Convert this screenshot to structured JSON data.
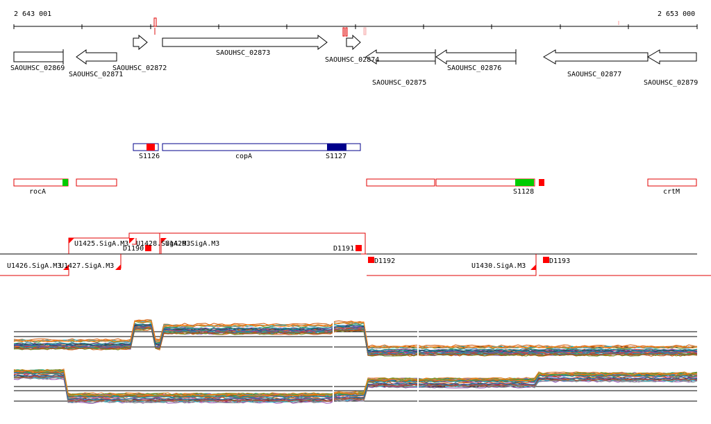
{
  "axis": {
    "start_label": "2 643 001",
    "end_label": "2 653 000"
  },
  "genes": [
    {
      "label": "SAOUHSC_02869",
      "dir": "none"
    },
    {
      "label": "SAOUHSC_02871",
      "dir": "left"
    },
    {
      "label": "SAOUHSC_02872",
      "dir": "right"
    },
    {
      "label": "SAOUHSC_02873",
      "dir": "right"
    },
    {
      "label": "SAOUHSC_02874",
      "dir": "right"
    },
    {
      "label": "SAOUHSC_02875",
      "dir": "left"
    },
    {
      "label": "SAOUHSC_02876",
      "dir": "left"
    },
    {
      "label": "SAOUHSC_02877",
      "dir": "left"
    },
    {
      "label": "SAOUHSC_02879",
      "dir": "left"
    }
  ],
  "features_blue": [
    {
      "label": "S1126"
    },
    {
      "label": "copA"
    },
    {
      "label": "S1127"
    }
  ],
  "features_red": [
    {
      "label": "rocA"
    },
    {
      "label": "S1128"
    },
    {
      "label": "crtM"
    }
  ],
  "transcription": [
    {
      "label": "U1425.SigA.M3"
    },
    {
      "label": "U1426.SigA.M3"
    },
    {
      "label": "U1427.SigA.M3"
    },
    {
      "label": "U1428.SigA.M3"
    },
    {
      "label": "U1429.SigA.M3"
    },
    {
      "label": "D1190"
    },
    {
      "label": "D1191"
    },
    {
      "label": "D1192"
    },
    {
      "label": "U1430.SigA.M3"
    },
    {
      "label": "D1193"
    }
  ],
  "colors": {
    "gene_outline": "#000000",
    "blue_track": "#00008b",
    "red_track": "#e00000",
    "green_highlight": "#00cc00",
    "promoter_red": "#ff0000"
  }
}
